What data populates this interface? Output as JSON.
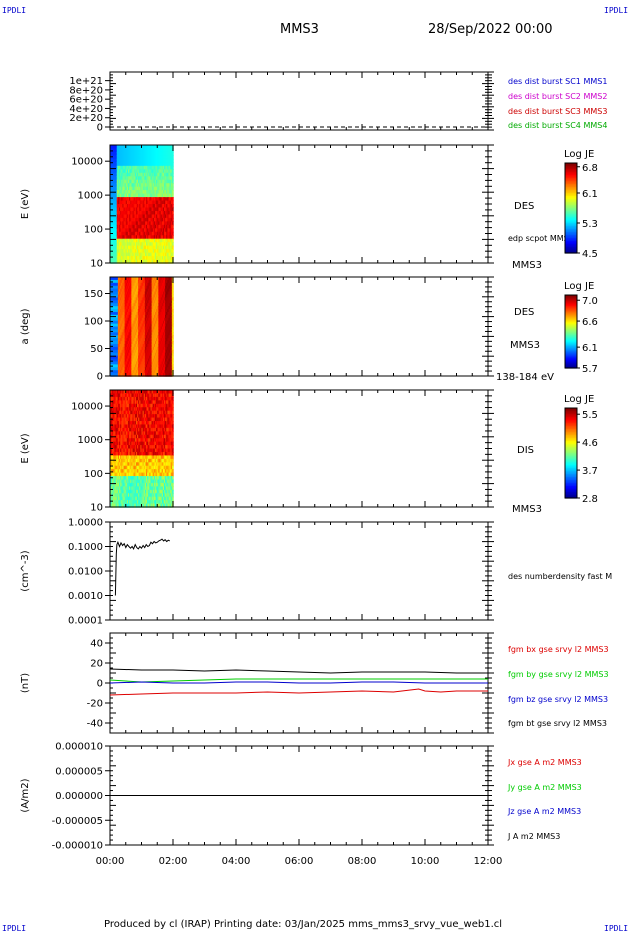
{
  "header": {
    "corner_tl": "IPDLI",
    "corner_tr": "IPDLI",
    "corner_bl": "IPDLI",
    "corner_br": "IPDLI",
    "spacecraft": "MMS3",
    "date": "28/Sep/2022 00:00"
  },
  "footer": {
    "text": "Produced by cl (IRAP)   Printing date: 03/Jan/2025   mms_mms3_srvy_vue_web1.cl"
  },
  "colors": {
    "sc1": "#0000cc",
    "sc2": "#cc00cc",
    "sc3": "#cc0000",
    "sc4": "#00aa00",
    "red": "#dd0000",
    "green": "#00cc00",
    "blue": "#0000cc",
    "black": "#000000"
  },
  "chart_data": [
    {
      "type": "line",
      "panel": "burst-flags",
      "ylabel": "",
      "yticks": [
        "1e+21",
        "8e+20",
        "6e+20",
        "4e+20",
        "2e+20",
        "0"
      ],
      "ylim": [
        0,
        1.1e+21
      ],
      "legend": [
        "des dist burst SC1 MMS1",
        "des dist burst SC2 MMS2",
        "des dist burst SC3 MMS3",
        "des dist burst SC4 MMS4"
      ],
      "series": [
        {
          "name": "dashed zero line",
          "x": [
            "00:00",
            "12:00"
          ],
          "values": [
            0,
            0
          ]
        }
      ]
    },
    {
      "type": "heatmap",
      "panel": "des-energy-spectrogram",
      "ylabel": "E (eV)",
      "yticks": [
        "10000",
        "1000",
        "100",
        "10"
      ],
      "ylim": [
        10,
        30000
      ],
      "yscale": "log",
      "data_coverage": [
        "00:00",
        "02:00"
      ],
      "side_labels": [
        "DES",
        "edp scpot MMS3",
        "MMS3"
      ],
      "colorbar": {
        "title": "Log JE",
        "ticks": [
          "6.8",
          "6.1",
          "5.3",
          "4.5"
        ],
        "range": [
          4.5,
          6.9
        ]
      }
    },
    {
      "type": "heatmap",
      "panel": "des-pitch-angle",
      "ylabel": "a (deg)",
      "yticks": [
        "150",
        "100",
        "50",
        "0"
      ],
      "ylim": [
        0,
        180
      ],
      "data_coverage": [
        "00:00",
        "02:00"
      ],
      "side_labels": [
        "DES",
        "MMS3",
        "138-184 eV"
      ],
      "colorbar": {
        "title": "Log JE",
        "ticks": [
          "7.0",
          "6.6",
          "6.1",
          "5.7"
        ],
        "range": [
          5.7,
          7.1
        ]
      }
    },
    {
      "type": "heatmap",
      "panel": "dis-energy-spectrogram",
      "ylabel": "E (eV)",
      "yticks": [
        "10000",
        "1000",
        "100",
        "10"
      ],
      "ylim": [
        10,
        30000
      ],
      "yscale": "log",
      "data_coverage": [
        "00:00",
        "02:00"
      ],
      "side_labels": [
        "DIS",
        "MMS3"
      ],
      "colorbar": {
        "title": "Log JE",
        "ticks": [
          "5.5",
          "4.6",
          "3.7",
          "2.8"
        ],
        "range": [
          2.8,
          5.7
        ]
      }
    },
    {
      "type": "line",
      "panel": "number-density",
      "ylabel": "(cm^-3)",
      "yticks": [
        "1.0000",
        "0.1000",
        "0.0100",
        "0.0010",
        "0.0001"
      ],
      "ylim": [
        0.0001,
        1.0
      ],
      "yscale": "log",
      "legend": [
        "des numberdensity fast M"
      ],
      "series": [
        {
          "name": "des numberdensity fast M",
          "x": [
            0.17,
            0.2,
            0.22,
            0.25,
            0.3,
            0.35,
            0.4,
            0.45,
            0.5,
            0.55,
            0.6,
            0.65,
            0.7,
            0.75,
            0.8,
            0.85,
            0.9,
            0.95,
            1.0,
            1.05,
            1.1,
            1.15,
            1.2,
            1.25,
            1.3,
            1.35,
            1.4,
            1.45,
            1.5,
            1.55,
            1.6,
            1.65,
            1.7,
            1.75,
            1.8,
            1.85,
            1.9
          ],
          "values": [
            0.001,
            0.05,
            0.12,
            0.15,
            0.1,
            0.14,
            0.11,
            0.13,
            0.09,
            0.12,
            0.1,
            0.085,
            0.1,
            0.08,
            0.12,
            0.09,
            0.08,
            0.1,
            0.085,
            0.11,
            0.09,
            0.12,
            0.1,
            0.11,
            0.15,
            0.13,
            0.16,
            0.14,
            0.15,
            0.17,
            0.18,
            0.2,
            0.17,
            0.19,
            0.16,
            0.18,
            0.17
          ]
        }
      ]
    },
    {
      "type": "line",
      "panel": "magnetic-field",
      "ylabel": "(nT)",
      "yticks": [
        "40",
        "20",
        "0",
        "-20",
        "-40"
      ],
      "ylim": [
        -50,
        50
      ],
      "legend": [
        "fgm bx gse srvy l2 MMS3",
        "fgm by gse srvy l2 MMS3",
        "fgm bz gse srvy l2 MMS3",
        "fgm bt gse srvy l2 MMS3"
      ],
      "series": [
        {
          "name": "fgm bx gse srvy l2 MMS3",
          "x": [
            0,
            1,
            2,
            3,
            4,
            5,
            6,
            7,
            8,
            9,
            9.8,
            10,
            10.5,
            11,
            12
          ],
          "values": [
            -12,
            -11,
            -10,
            -10,
            -10,
            -9,
            -10,
            -9,
            -8,
            -9,
            -6,
            -8,
            -9,
            -8,
            -8
          ]
        },
        {
          "name": "fgm by gse srvy l2 MMS3",
          "x": [
            0,
            1,
            2,
            3,
            4,
            5,
            6,
            7,
            8,
            9,
            10,
            11,
            12
          ],
          "values": [
            3,
            1,
            2,
            3,
            4,
            4,
            4,
            4,
            4,
            4,
            4,
            4,
            4
          ]
        },
        {
          "name": "fgm bz gse srvy l2 MMS3",
          "x": [
            0,
            1,
            2,
            3,
            4,
            5,
            6,
            7,
            8,
            9,
            10,
            11,
            12
          ],
          "values": [
            0,
            1,
            0,
            0,
            1,
            1,
            0,
            0,
            1,
            1,
            0,
            0,
            0
          ]
        },
        {
          "name": "fgm bt gse srvy l2 MMS3",
          "x": [
            0,
            1,
            2,
            3,
            4,
            5,
            6,
            7,
            8,
            9,
            10,
            11,
            12
          ],
          "values": [
            14,
            13,
            13,
            12,
            13,
            12,
            11,
            10,
            11,
            11,
            11,
            10,
            10
          ]
        }
      ]
    },
    {
      "type": "line",
      "panel": "current-density",
      "ylabel": "(A/m2)",
      "yticks": [
        "0.000010",
        "0.000005",
        "0.000000",
        "-0.000005",
        "-0.000010"
      ],
      "ylim": [
        -1e-05,
        1e-05
      ],
      "legend": [
        "Jx gse A m2 MMS3",
        "Jy gse A m2 MMS3",
        "Jz gse A m2 MMS3",
        "J A m2 MMS3"
      ],
      "series": [
        {
          "name": "zero line",
          "x": [
            0,
            12
          ],
          "values": [
            0,
            0
          ]
        }
      ]
    }
  ],
  "xaxis": {
    "ticks": [
      "00:00",
      "02:00",
      "04:00",
      "06:00",
      "08:00",
      "10:00",
      "12:00"
    ]
  }
}
